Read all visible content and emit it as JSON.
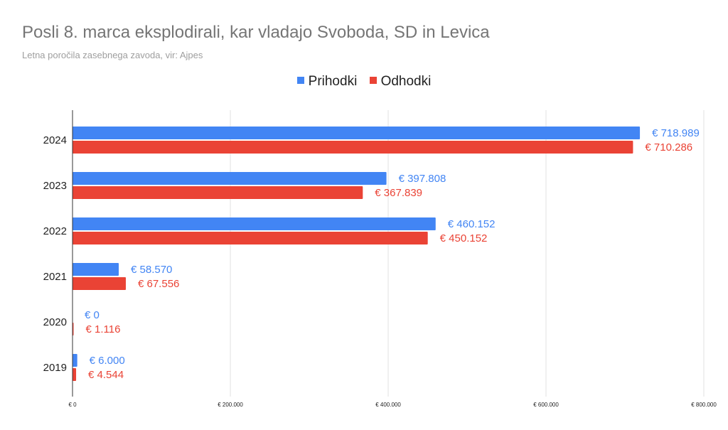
{
  "colors": {
    "prihodki": "#4285f4",
    "odhodki": "#ea4335",
    "grid": "#e0e0e0",
    "axis": "#333333",
    "text": "#222222"
  },
  "chart_data": {
    "type": "bar",
    "orientation": "horizontal",
    "title": "Posli 8. marca eksplodirali, kar vladajo Svoboda, SD in Levica",
    "subtitle": "Letna poročila zasebnega zavoda, vir: Ajpes",
    "legend_position": "top-center",
    "categories": [
      "2024",
      "2023",
      "2022",
      "2021",
      "2020",
      "2019"
    ],
    "series": [
      {
        "name": "Prihodki",
        "color": "#4285f4",
        "values": [
          718989,
          397808,
          460152,
          58570,
          0,
          6000
        ],
        "labels": [
          "€ 718.989",
          "€ 397.808",
          "€ 460.152",
          "€ 58.570",
          "€ 0",
          "€ 6.000"
        ]
      },
      {
        "name": "Odhodki",
        "color": "#ea4335",
        "values": [
          710286,
          367839,
          450152,
          67556,
          1116,
          4544
        ],
        "labels": [
          "€ 710.286",
          "€ 367.839",
          "€ 450.152",
          "€ 67.556",
          "€ 1.116",
          "€ 4.544"
        ]
      }
    ],
    "xlim": [
      0,
      800000
    ],
    "xticks": [
      0,
      200000,
      400000,
      600000,
      800000
    ],
    "xtick_labels": [
      "€ 0",
      "€ 200.000",
      "€ 400.000",
      "€ 600.000",
      "€ 800.000"
    ],
    "xlabel": "",
    "ylabel": "",
    "grid": true
  }
}
